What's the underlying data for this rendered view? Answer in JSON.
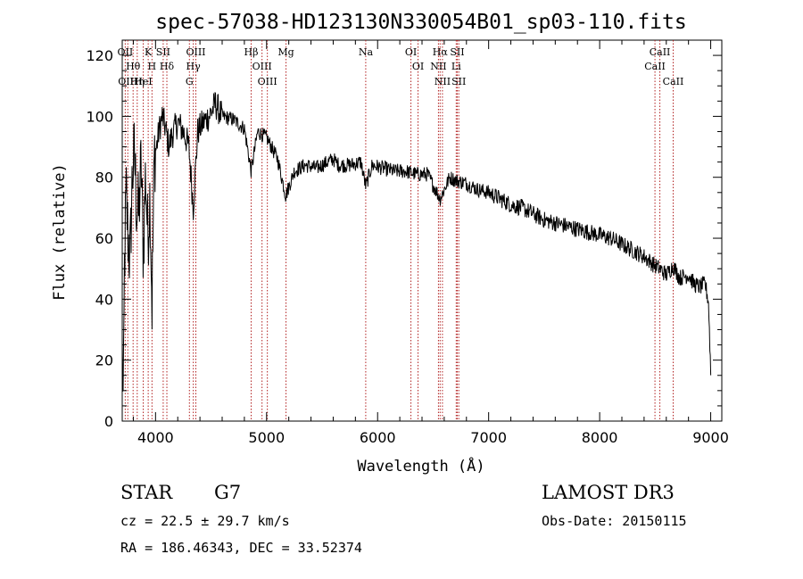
{
  "chart_data": {
    "type": "line",
    "title": "spec-57038-HD123130N330054B01_sp03-110.fits",
    "xlabel": "Wavelength (Å)",
    "ylabel": "Flux (relative)",
    "xlim": [
      3700,
      9100
    ],
    "ylim": [
      0,
      125
    ],
    "xticks": [
      4000,
      5000,
      6000,
      7000,
      8000,
      9000
    ],
    "yticks": [
      0,
      20,
      40,
      60,
      80,
      100,
      120
    ],
    "series": [
      {
        "name": "flux",
        "x": [
          3700,
          3710,
          3720,
          3735,
          3750,
          3770,
          3790,
          3810,
          3830,
          3850,
          3870,
          3890,
          3910,
          3930,
          3950,
          3968,
          3990,
          4010,
          4030,
          4060,
          4090,
          4120,
          4150,
          4200,
          4250,
          4300,
          4340,
          4380,
          4430,
          4480,
          4540,
          4600,
          4700,
          4800,
          4861,
          4920,
          5000,
          5100,
          5172,
          5250,
          5350,
          5450,
          5550,
          5600,
          5650,
          5750,
          5850,
          5893,
          5950,
          6050,
          6150,
          6250,
          6350,
          6450,
          6563,
          6650,
          6700,
          6800,
          6900,
          7000,
          7100,
          7200,
          7300,
          7400,
          7500,
          7600,
          7700,
          7800,
          7900,
          8000,
          8100,
          8200,
          8300,
          8400,
          8498,
          8542,
          8600,
          8662,
          8720,
          8800,
          8850,
          8900,
          8950,
          8980,
          9000
        ],
        "y": [
          24,
          2,
          50,
          75,
          62,
          52,
          80,
          88,
          70,
          68,
          85,
          55,
          82,
          60,
          75,
          38,
          88,
          90,
          95,
          100,
          96,
          90,
          94,
          98,
          95,
          90,
          70,
          95,
          98,
          100,
          104,
          100,
          99,
          96,
          82,
          95,
          93,
          86,
          74,
          82,
          84,
          83,
          85,
          86,
          84,
          84,
          85,
          77,
          84,
          83,
          82,
          82,
          81,
          81,
          73,
          80,
          79,
          78,
          76,
          75,
          73,
          71,
          70,
          68,
          66,
          65,
          64,
          63,
          62,
          61,
          60,
          58,
          56,
          54,
          51,
          50,
          48,
          51,
          47,
          48,
          45,
          44,
          45,
          39,
          16
        ]
      }
    ],
    "spectral_lines": [
      {
        "label": "OII",
        "wavelength": 3727
      },
      {
        "label": "Hθ",
        "wavelength": 3798
      },
      {
        "label": "OIII",
        "wavelength": 3750
      },
      {
        "label": "Hη",
        "wavelength": 3835
      },
      {
        "label": "HeI",
        "wavelength": 3889
      },
      {
        "label": "K",
        "wavelength": 3934
      },
      {
        "label": "H",
        "wavelength": 3968
      },
      {
        "label": "SII",
        "wavelength": 4069
      },
      {
        "label": "Hδ",
        "wavelength": 4102
      },
      {
        "label": "OIII",
        "wavelength": 4363
      },
      {
        "label": "Hγ",
        "wavelength": 4340
      },
      {
        "label": "G",
        "wavelength": 4305
      },
      {
        "label": "Hβ",
        "wavelength": 4861
      },
      {
        "label": "OIII",
        "wavelength": 4959
      },
      {
        "label": "OIII",
        "wavelength": 5007
      },
      {
        "label": "Mg",
        "wavelength": 5175
      },
      {
        "label": "Na",
        "wavelength": 5893
      },
      {
        "label": "OI",
        "wavelength": 6300
      },
      {
        "label": "OI",
        "wavelength": 6364
      },
      {
        "label": "Hα",
        "wavelength": 6563
      },
      {
        "label": "NII",
        "wavelength": 6548
      },
      {
        "label": "NII",
        "wavelength": 6584
      },
      {
        "label": "SII",
        "wavelength": 6717
      },
      {
        "label": "Li",
        "wavelength": 6708
      },
      {
        "label": "SII",
        "wavelength": 6731
      },
      {
        "label": "CaII",
        "wavelength": 8542
      },
      {
        "label": "CaII",
        "wavelength": 8498
      },
      {
        "label": "CaII",
        "wavelength": 8662
      }
    ]
  },
  "info": {
    "class": "STAR",
    "subclass": "G7",
    "survey": "LAMOST DR3",
    "velocity": "cz = 22.5 ± 29.7 km/s",
    "obs_date": "Obs-Date: 20150115",
    "coords": "RA = 186.46343, DEC =  33.52374"
  },
  "colors": {
    "line_marker": "#b22222",
    "spectrum": "#000000"
  }
}
